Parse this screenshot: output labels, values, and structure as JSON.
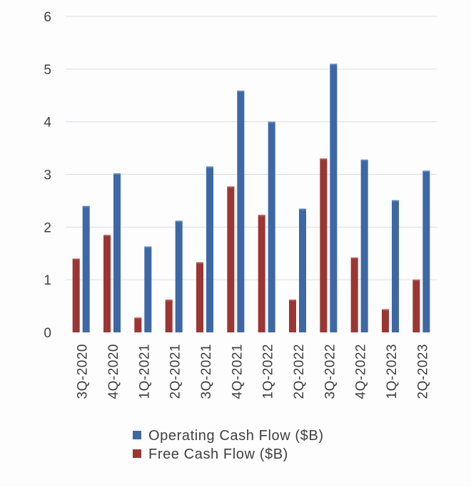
{
  "chart_data": {
    "type": "bar",
    "title": "",
    "xlabel": "",
    "ylabel": "",
    "ylim": [
      0,
      6
    ],
    "yticks": [
      0,
      1,
      2,
      3,
      4,
      5,
      6
    ],
    "grid": true,
    "legend_position": "bottom-center",
    "categories": [
      "3Q-2020",
      "4Q-2020",
      "1Q-2021",
      "2Q-2021",
      "3Q-2021",
      "4Q-2021",
      "1Q-2022",
      "2Q-2022",
      "3Q-2022",
      "4Q-2022",
      "1Q-2023",
      "2Q-2023"
    ],
    "series": [
      {
        "name": "Free Cash Flow ($B)",
        "color": "#9b3633",
        "values": [
          1.4,
          1.85,
          0.28,
          0.62,
          1.33,
          2.77,
          2.23,
          0.62,
          3.3,
          1.42,
          0.44,
          1.0
        ]
      },
      {
        "name": "Operating Cash Flow ($B)",
        "color": "#3d68a5",
        "values": [
          2.4,
          3.02,
          1.63,
          2.12,
          3.15,
          4.59,
          4.0,
          2.35,
          5.1,
          3.28,
          2.51,
          3.07
        ]
      }
    ],
    "legend": [
      {
        "label": "Operating Cash Flow ($B)",
        "color": "#3d68a5"
      },
      {
        "label": "Free Cash Flow ($B)",
        "color": "#9b3633"
      }
    ]
  }
}
